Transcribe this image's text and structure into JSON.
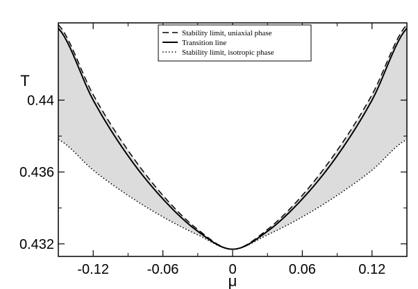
{
  "chart_data": {
    "type": "line",
    "title": "",
    "xlabel": "μ",
    "ylabel": "T",
    "xlim": [
      -0.15,
      0.15
    ],
    "ylim": [
      0.4313,
      0.4443
    ],
    "xticks": [
      -0.12,
      -0.06,
      0,
      0.06,
      0.12
    ],
    "xtick_labels": [
      "-0.12",
      "-0.06",
      "0",
      "0.06",
      "0.12"
    ],
    "yticks": [
      0.432,
      0.436,
      0.44
    ],
    "ytick_labels": [
      "0.432",
      "0.436",
      "0.44"
    ],
    "grid": false,
    "legend_position": "top-center",
    "shaded_region": {
      "between": [
        "Stability limit, uniaxial phase",
        "Stability limit, isotropic phase"
      ],
      "color": "#dcdcdc"
    },
    "series": [
      {
        "name": "Stability limit, uniaxial phase",
        "style": "dashed",
        "color": "#000000",
        "x": [
          -0.15,
          -0.12,
          -0.09,
          -0.06,
          -0.03,
          0,
          0.03,
          0.06,
          0.09,
          0.12,
          0.15
        ],
        "y": [
          0.4442,
          0.4403,
          0.4372,
          0.4347,
          0.4328,
          0.4317,
          0.4328,
          0.4347,
          0.4372,
          0.4403,
          0.4442
        ]
      },
      {
        "name": "Transition line",
        "style": "solid",
        "color": "#000000",
        "x": [
          -0.15,
          -0.12,
          -0.09,
          -0.06,
          -0.03,
          0,
          0.03,
          0.06,
          0.09,
          0.12,
          0.15
        ],
        "y": [
          0.444,
          0.44,
          0.4369,
          0.4345,
          0.4327,
          0.4317,
          0.4327,
          0.4345,
          0.4369,
          0.44,
          0.444
        ]
      },
      {
        "name": "Stability limit, isotropic phase",
        "style": "dotted",
        "color": "#000000",
        "x": [
          -0.15,
          -0.12,
          -0.09,
          -0.06,
          -0.03,
          0,
          0.03,
          0.06,
          0.09,
          0.12,
          0.15
        ],
        "y": [
          0.4378,
          0.4361,
          0.4347,
          0.4335,
          0.4325,
          0.4317,
          0.4325,
          0.4335,
          0.4347,
          0.4361,
          0.4378
        ]
      }
    ]
  }
}
